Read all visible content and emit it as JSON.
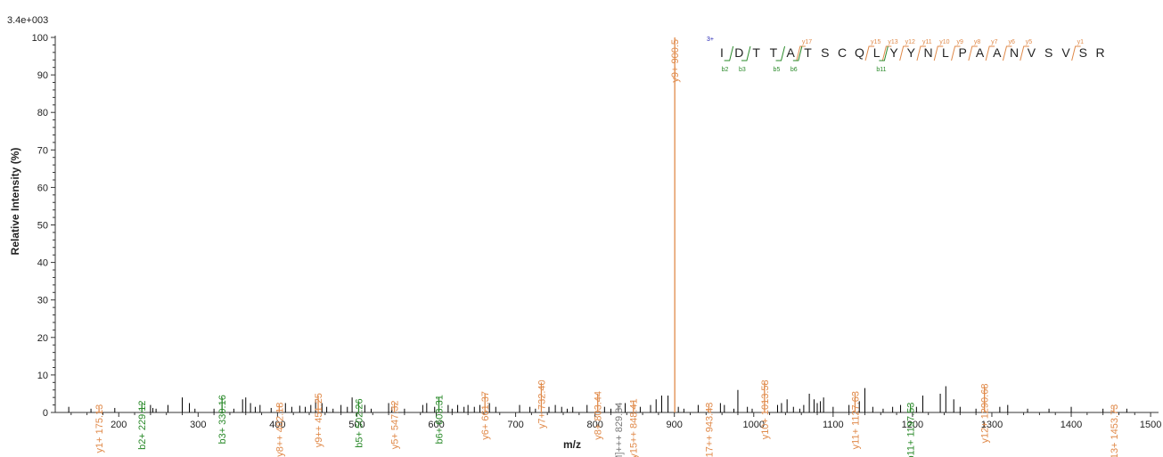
{
  "chart_data": {
    "type": "bar",
    "title": "",
    "scale_label": "3.4e+003",
    "xlabel": "m/z",
    "ylabel": "Relative Intensity (%)",
    "xlim": [
      120,
      1510
    ],
    "ylim": [
      0,
      100
    ],
    "xticks": [
      200,
      300,
      400,
      500,
      600,
      700,
      800,
      900,
      1000,
      1100,
      1200,
      1300,
      1400,
      1500
    ],
    "yticks": [
      0,
      10,
      20,
      30,
      40,
      50,
      60,
      70,
      80,
      90,
      100
    ],
    "colors": {
      "y_ion": "#e08a4a",
      "b_ion": "#2a8a2a",
      "precursor": "#7a7a7a",
      "unassigned": "#000000",
      "charge": "#1a1ab0"
    },
    "annotated_peaks": [
      {
        "mz": 175.13,
        "intensity": 1.5,
        "label": "y1+ 175.13",
        "ion": "y"
      },
      {
        "mz": 229.12,
        "intensity": 2.5,
        "label": "b2+ 229.12",
        "ion": "b"
      },
      {
        "mz": 330.16,
        "intensity": 4.0,
        "label": "b3+ 330.16",
        "ion": "b"
      },
      {
        "mz": 402.18,
        "intensity": 2.0,
        "label": "y8++ 402.18",
        "ion": "y"
      },
      {
        "mz": 451.25,
        "intensity": 4.5,
        "label": "y9++ 451.25",
        "ion": "y"
      },
      {
        "mz": 502.26,
        "intensity": 3.0,
        "label": "b5+ 502.26",
        "ion": "b"
      },
      {
        "mz": 547.32,
        "intensity": 2.5,
        "label": "y5+ 547.32",
        "ion": "y"
      },
      {
        "mz": 603.31,
        "intensity": 4.0,
        "label": "b6+ 603.31",
        "ion": "b"
      },
      {
        "mz": 661.37,
        "intensity": 5.0,
        "label": "y6+ 661.37",
        "ion": "y"
      },
      {
        "mz": 732.4,
        "intensity": 8.0,
        "label": "y7+ 732.40",
        "ion": "y"
      },
      {
        "mz": 803.44,
        "intensity": 5.0,
        "label": "y8+ 803.44",
        "ion": "y"
      },
      {
        "mz": 829.34,
        "intensity": 2.0,
        "label": "[M]+++ 829.34",
        "ion": "precursor"
      },
      {
        "mz": 848.41,
        "intensity": 3.0,
        "label": "y15++ 848.41",
        "ion": "y"
      },
      {
        "mz": 900.5,
        "intensity": 100,
        "label": "y9+ 900.5",
        "ion": "y"
      },
      {
        "mz": 943.43,
        "intensity": 2.0,
        "label": "y17++ 943.43",
        "ion": "y"
      },
      {
        "mz": 1013.58,
        "intensity": 8.0,
        "label": "y10+ 1013.58",
        "ion": "y"
      },
      {
        "mz": 1127.63,
        "intensity": 5.0,
        "label": "y11+ 1127.63",
        "ion": "y"
      },
      {
        "mz": 1197.53,
        "intensity": 2.0,
        "label": "b11+ 1197.53",
        "ion": "b"
      },
      {
        "mz": 1290.68,
        "intensity": 7.0,
        "label": "y12+ 1290.68",
        "ion": "y"
      },
      {
        "mz": 1453.73,
        "intensity": 1.5,
        "label": "y13+ 1453.73",
        "ion": "y"
      }
    ],
    "unassigned_peaks": [
      [
        137,
        1.5
      ],
      [
        165,
        1.0
      ],
      [
        195,
        1.2
      ],
      [
        240,
        2.0
      ],
      [
        243,
        1.2
      ],
      [
        247,
        1.0
      ],
      [
        262,
        2.0
      ],
      [
        280,
        4.0
      ],
      [
        289,
        2.5
      ],
      [
        296,
        1.0
      ],
      [
        320,
        1.0
      ],
      [
        330,
        2.0
      ],
      [
        345,
        1.0
      ],
      [
        356,
        3.5
      ],
      [
        360,
        4.0
      ],
      [
        366,
        2.5
      ],
      [
        372,
        1.5
      ],
      [
        378,
        2.0
      ],
      [
        392,
        1.2
      ],
      [
        410,
        2.5
      ],
      [
        418,
        1.5
      ],
      [
        428,
        1.8
      ],
      [
        435,
        1.5
      ],
      [
        442,
        2.0
      ],
      [
        448,
        3.5
      ],
      [
        456,
        2.5
      ],
      [
        462,
        1.5
      ],
      [
        470,
        1.0
      ],
      [
        480,
        2.0
      ],
      [
        488,
        1.5
      ],
      [
        494,
        4.0
      ],
      [
        510,
        2.0
      ],
      [
        518,
        1.0
      ],
      [
        540,
        2.5
      ],
      [
        544,
        1.5
      ],
      [
        560,
        1.0
      ],
      [
        583,
        2.0
      ],
      [
        588,
        2.5
      ],
      [
        598,
        1.5
      ],
      [
        615,
        2.0
      ],
      [
        620,
        1.0
      ],
      [
        627,
        2.0
      ],
      [
        635,
        1.5
      ],
      [
        640,
        2.0
      ],
      [
        648,
        1.5
      ],
      [
        655,
        2.0
      ],
      [
        667,
        2.5
      ],
      [
        675,
        1.5
      ],
      [
        705,
        2.0
      ],
      [
        718,
        1.5
      ],
      [
        725,
        1.0
      ],
      [
        742,
        1.5
      ],
      [
        750,
        2.0
      ],
      [
        758,
        1.5
      ],
      [
        765,
        1.0
      ],
      [
        772,
        1.5
      ],
      [
        790,
        2.0
      ],
      [
        812,
        1.5
      ],
      [
        820,
        1.0
      ],
      [
        838,
        2.5
      ],
      [
        857,
        1.5
      ],
      [
        870,
        2.0
      ],
      [
        877,
        3.5
      ],
      [
        884,
        4.5
      ],
      [
        892,
        4.5
      ],
      [
        905,
        1.5
      ],
      [
        912,
        1.0
      ],
      [
        930,
        2.0
      ],
      [
        958,
        2.5
      ],
      [
        963,
        2.0
      ],
      [
        975,
        1.0
      ],
      [
        980,
        6.0
      ],
      [
        992,
        1.5
      ],
      [
        998,
        1.0
      ],
      [
        1030,
        2.0
      ],
      [
        1035,
        2.5
      ],
      [
        1042,
        3.5
      ],
      [
        1050,
        1.5
      ],
      [
        1058,
        1.0
      ],
      [
        1063,
        2.0
      ],
      [
        1070,
        5.0
      ],
      [
        1076,
        3.5
      ],
      [
        1080,
        2.5
      ],
      [
        1084,
        3.0
      ],
      [
        1088,
        4.0
      ],
      [
        1100,
        1.5
      ],
      [
        1120,
        2.0
      ],
      [
        1133,
        3.0
      ],
      [
        1140,
        6.5
      ],
      [
        1150,
        1.5
      ],
      [
        1163,
        1.0
      ],
      [
        1175,
        1.5
      ],
      [
        1185,
        2.0
      ],
      [
        1205,
        1.5
      ],
      [
        1213,
        4.5
      ],
      [
        1235,
        5.0
      ],
      [
        1242,
        7.0
      ],
      [
        1252,
        3.5
      ],
      [
        1260,
        1.5
      ],
      [
        1280,
        1.0
      ],
      [
        1310,
        1.5
      ],
      [
        1320,
        2.0
      ],
      [
        1345,
        1.0
      ],
      [
        1372,
        1.0
      ],
      [
        1400,
        1.5
      ],
      [
        1440,
        1.0
      ],
      [
        1470,
        1.0
      ]
    ],
    "sequence": {
      "charge_label": "3+",
      "residues": [
        "I",
        "D",
        "T",
        "T",
        "A",
        "T",
        "S",
        "C",
        "Q",
        "L",
        "Y",
        "Y",
        "N",
        "L",
        "P",
        "A",
        "A",
        "N",
        "V",
        "S",
        "V",
        "S",
        "R"
      ],
      "y_ions": [
        {
          "after": 5,
          "label": "y17"
        },
        {
          "after": 9,
          "label": "y15"
        },
        {
          "after": 10,
          "label": "y13"
        },
        {
          "after": 11,
          "label": "y12"
        },
        {
          "after": 12,
          "label": "y11"
        },
        {
          "after": 13,
          "label": "y10"
        },
        {
          "after": 14,
          "label": "y9"
        },
        {
          "after": 15,
          "label": "y8"
        },
        {
          "after": 16,
          "label": "y7"
        },
        {
          "after": 17,
          "label": "y6"
        },
        {
          "after": 18,
          "label": "y5"
        },
        {
          "after": 21,
          "label": "y1"
        }
      ],
      "b_ions": [
        {
          "after": 1,
          "label": "b2"
        },
        {
          "after": 2,
          "label": "b3"
        },
        {
          "after": 4,
          "label": "b5"
        },
        {
          "after": 5,
          "label": "b6"
        },
        {
          "after": 10,
          "label": "b11"
        }
      ]
    }
  }
}
